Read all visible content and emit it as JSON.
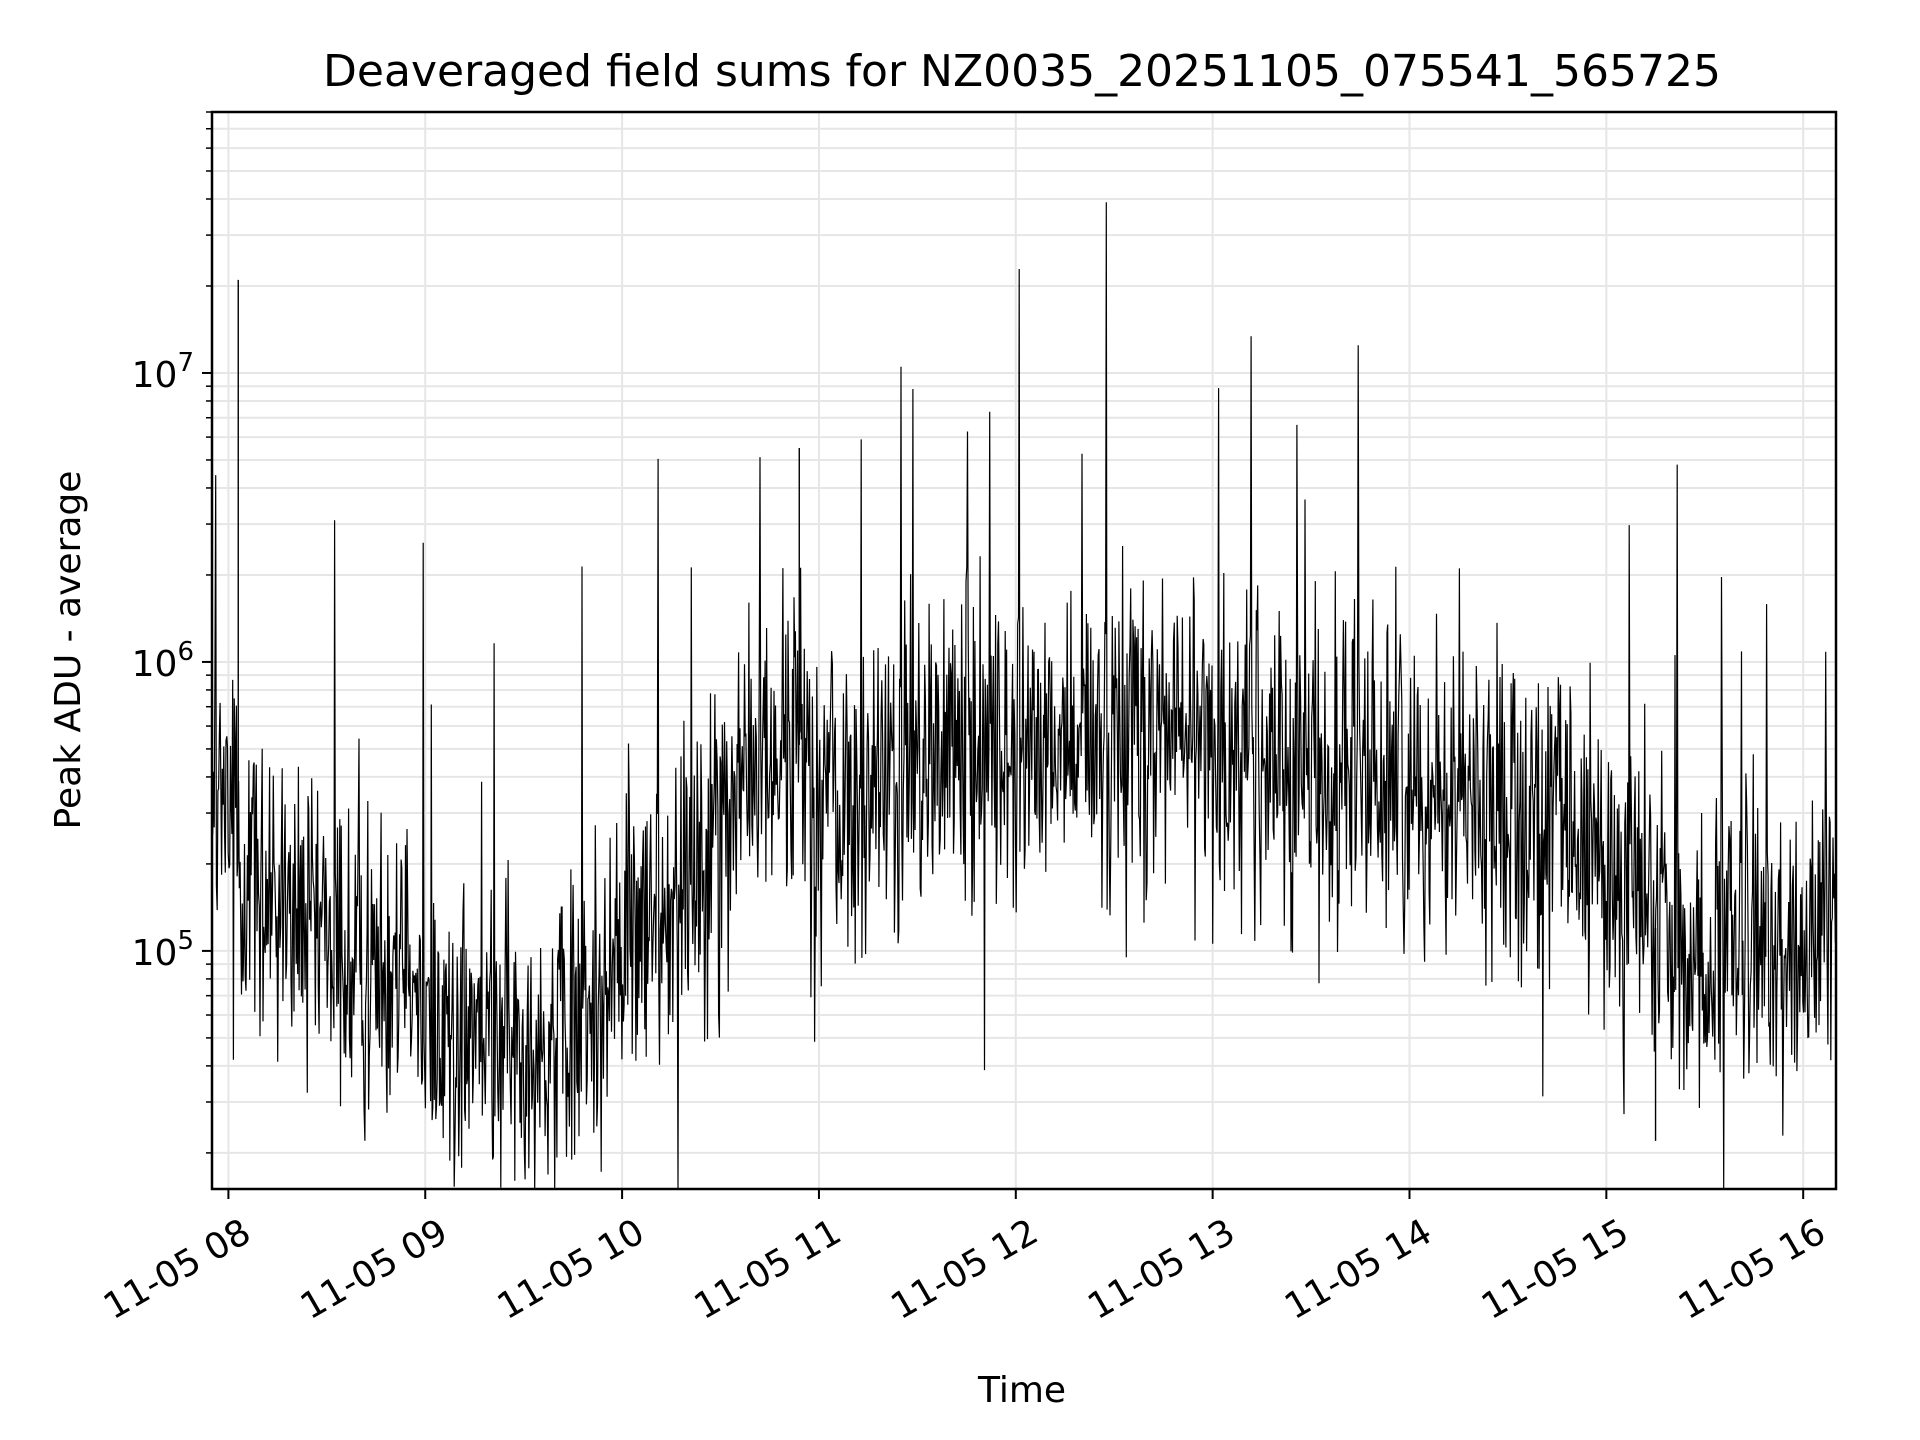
{
  "chart_data": {
    "type": "line",
    "title": "Deaveraged field sums for NZ0035_20251105_075541_565725",
    "xlabel": "Time",
    "ylabel": "Peak ADU - average",
    "yscale": "log",
    "xlim": [
      "2025-11-05 07:55",
      "2025-11-05 16:10"
    ],
    "ylim": [
      15000,
      80000000
    ],
    "grid": true,
    "line_color": "#000000",
    "x_ticks": [
      {
        "value": "2025-11-05 08:00",
        "label": "11-05 08"
      },
      {
        "value": "2025-11-05 09:00",
        "label": "11-05 09"
      },
      {
        "value": "2025-11-05 10:00",
        "label": "11-05 10"
      },
      {
        "value": "2025-11-05 11:00",
        "label": "11-05 11"
      },
      {
        "value": "2025-11-05 12:00",
        "label": "11-05 12"
      },
      {
        "value": "2025-11-05 13:00",
        "label": "11-05 13"
      },
      {
        "value": "2025-11-05 14:00",
        "label": "11-05 14"
      },
      {
        "value": "2025-11-05 15:00",
        "label": "11-05 15"
      },
      {
        "value": "2025-11-05 16:00",
        "label": "11-05 16"
      }
    ],
    "y_ticks": [
      {
        "value": 100000,
        "base": "10",
        "exp": "5"
      },
      {
        "value": 1000000,
        "base": "10",
        "exp": "6"
      },
      {
        "value": 10000000,
        "base": "10",
        "exp": "7"
      }
    ],
    "series": [
      {
        "x": [
          "2025-11-05 07:55",
          "2025-11-05 07:58",
          "2025-11-05 08:01",
          "2025-11-05 08:04",
          "2025-11-05 08:07",
          "2025-11-05 08:10",
          "2025-11-05 08:13",
          "2025-11-05 08:16",
          "2025-11-05 08:20",
          "2025-11-05 08:25",
          "2025-11-05 08:30",
          "2025-11-05 08:35",
          "2025-11-05 08:40",
          "2025-11-05 08:45",
          "2025-11-05 08:50",
          "2025-11-05 08:55",
          "2025-11-05 09:00",
          "2025-11-05 09:05",
          "2025-11-05 09:10",
          "2025-11-05 09:15",
          "2025-11-05 09:20",
          "2025-11-05 09:25",
          "2025-11-05 09:30",
          "2025-11-05 09:35",
          "2025-11-05 09:40",
          "2025-11-05 09:45",
          "2025-11-05 09:50",
          "2025-11-05 09:55",
          "2025-11-05 10:00",
          "2025-11-05 10:05",
          "2025-11-05 10:10",
          "2025-11-05 10:15",
          "2025-11-05 10:20",
          "2025-11-05 10:25",
          "2025-11-05 10:30",
          "2025-11-05 10:35",
          "2025-11-05 10:40",
          "2025-11-05 10:45",
          "2025-11-05 10:50",
          "2025-11-05 10:55",
          "2025-11-05 11:00",
          "2025-11-05 11:05",
          "2025-11-05 11:10",
          "2025-11-05 11:15",
          "2025-11-05 11:20",
          "2025-11-05 11:25",
          "2025-11-05 11:30",
          "2025-11-05 11:35",
          "2025-11-05 11:40",
          "2025-11-05 11:45",
          "2025-11-05 11:50",
          "2025-11-05 11:55",
          "2025-11-05 12:00",
          "2025-11-05 12:05",
          "2025-11-05 12:10",
          "2025-11-05 12:15",
          "2025-11-05 12:20",
          "2025-11-05 12:25",
          "2025-11-05 12:30",
          "2025-11-05 12:35",
          "2025-11-05 12:40",
          "2025-11-05 12:45",
          "2025-11-05 12:50",
          "2025-11-05 12:55",
          "2025-11-05 13:00",
          "2025-11-05 13:05",
          "2025-11-05 13:10",
          "2025-11-05 13:15",
          "2025-11-05 13:20",
          "2025-11-05 13:25",
          "2025-11-05 13:30",
          "2025-11-05 13:35",
          "2025-11-05 13:40",
          "2025-11-05 13:45",
          "2025-11-05 13:50",
          "2025-11-05 13:55",
          "2025-11-05 14:00",
          "2025-11-05 14:05",
          "2025-11-05 14:10",
          "2025-11-05 14:15",
          "2025-11-05 14:20",
          "2025-11-05 14:25",
          "2025-11-05 14:30",
          "2025-11-05 14:35",
          "2025-11-05 14:40",
          "2025-11-05 14:45",
          "2025-11-05 14:50",
          "2025-11-05 14:55",
          "2025-11-05 15:00",
          "2025-11-05 15:05",
          "2025-11-05 15:10",
          "2025-11-05 15:15",
          "2025-11-05 15:20",
          "2025-11-05 15:25",
          "2025-11-05 15:30",
          "2025-11-05 15:35",
          "2025-11-05 15:40",
          "2025-11-05 15:45",
          "2025-11-05 15:50",
          "2025-11-05 15:55",
          "2025-11-05 16:00",
          "2025-11-05 16:05",
          "2025-11-05 16:10"
        ],
        "y": [
          400000,
          300000,
          250000,
          200000,
          180000,
          160000,
          140000,
          130000,
          120000,
          110000,
          100000,
          90000,
          85000,
          90000,
          110000,
          150000,
          60000,
          55000,
          52000,
          50000,
          48000,
          47000,
          46000,
          45000,
          48000,
          55000,
          65000,
          80000,
          90000,
          110000,
          130000,
          160000,
          200000,
          250000,
          300000,
          350000,
          400000,
          450000,
          500000,
          520000,
          400000,
          350000,
          300000,
          320000,
          380000,
          420000,
          450000,
          480000,
          500000,
          510000,
          520000,
          500000,
          480000,
          470000,
          490000,
          520000,
          540000,
          560000,
          580000,
          590000,
          600000,
          580000,
          560000,
          540000,
          520000,
          500000,
          480000,
          470000,
          460000,
          450000,
          440000,
          430000,
          420000,
          410000,
          400000,
          390000,
          380000,
          370000,
          360000,
          350000,
          340000,
          330000,
          320000,
          300000,
          280000,
          260000,
          240000,
          220000,
          200000,
          170000,
          140000,
          120000,
          100000,
          90000,
          85000,
          90000,
          95000,
          100000,
          105000,
          110000,
          115000,
          110000,
          105000
        ]
      }
    ],
    "annotations": [
      {
        "x": "2025-11-05 08:03",
        "y": 21000000,
        "text": ""
      },
      {
        "x": "2025-11-05 10:54",
        "y": 5500000,
        "text": ""
      },
      {
        "x": "2025-11-05 15:15",
        "y": 22000,
        "text": ""
      }
    ]
  }
}
